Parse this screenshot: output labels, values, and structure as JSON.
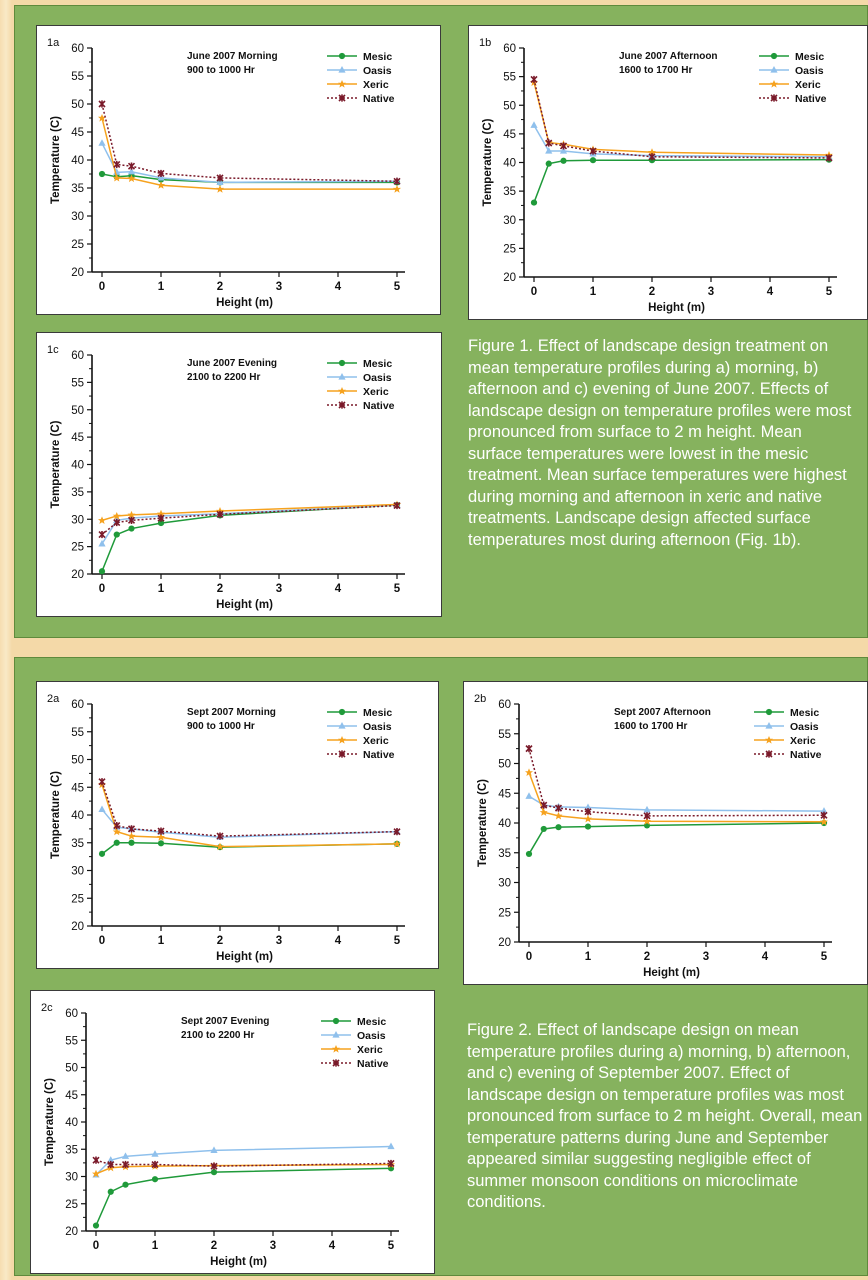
{
  "colors": {
    "panel": "#86b25e",
    "Mesic": "#1f9a3a",
    "Oasis": "#8fc0ec",
    "Xeric": "#f6a21e",
    "Native": "#7a1a2a"
  },
  "axis_text": {
    "ylabel": "Temperature (C)",
    "xlabel": "Height (m)",
    "yticks": [
      "60",
      "55",
      "50",
      "45",
      "40",
      "35",
      "30",
      "25",
      "20"
    ],
    "xticks": [
      "0",
      "1",
      "2",
      "3",
      "4",
      "5"
    ]
  },
  "legend": [
    "Mesic",
    "Oasis",
    "Xeric",
    "Native"
  ],
  "captions": {
    "fig1": "Figure 1. Effect of landscape design treatment on mean temperature profiles during a) morning, b) afternoon and c) evening of June 2007. Effects of landscape design on temperature profiles were most pronounced from surface to 2 m height. Mean surface temperatures were lowest in the mesic treatment. Mean surface temperatures were highest during morning and afternoon in xeric and native treatments. Landscape design affected surface temperatures most during afternoon (Fig. 1b).",
    "fig2": "Figure 2. Effect of landscape design on mean temperature profiles during a) morning, b) afternoon, and c) evening of September 2007. Effect of landscape design on temperature profiles was most pronounced from surface to 2 m height. Overall, mean temperature patterns during June and September appeared similar suggesting negligible effect of summer monsoon conditions on microclimate conditions."
  },
  "chart_data": [
    {
      "id": "1a",
      "type": "line",
      "title": "June 2007 Morning",
      "subtitle": "900 to 1000 Hr",
      "xlabel": "Height (m)",
      "ylabel": "Temperature (C)",
      "xlim": [
        0,
        5
      ],
      "ylim": [
        20,
        60
      ],
      "legend_position": "top-right",
      "x": [
        0,
        0.25,
        0.5,
        1,
        2,
        5
      ],
      "series": [
        {
          "name": "Mesic",
          "values": [
            37.5,
            37.0,
            37.2,
            36.5,
            36.0,
            36.0
          ]
        },
        {
          "name": "Oasis",
          "values": [
            43.0,
            37.8,
            37.9,
            36.8,
            36.0,
            36.2
          ]
        },
        {
          "name": "Xeric",
          "values": [
            47.5,
            36.8,
            36.7,
            35.5,
            34.8,
            34.8
          ]
        },
        {
          "name": "Native",
          "values": [
            50.0,
            39.2,
            38.9,
            37.6,
            36.8,
            36.2
          ]
        }
      ]
    },
    {
      "id": "1b",
      "type": "line",
      "title": "June 2007 Afternoon",
      "subtitle": "1600 to 1700 Hr",
      "xlabel": "Height (m)",
      "ylabel": "Temperature (C)",
      "xlim": [
        0,
        5
      ],
      "ylim": [
        20,
        60
      ],
      "legend_position": "top-right",
      "x": [
        0,
        0.25,
        0.5,
        1,
        2,
        5
      ],
      "series": [
        {
          "name": "Mesic",
          "values": [
            33.0,
            39.8,
            40.3,
            40.4,
            40.4,
            40.5
          ]
        },
        {
          "name": "Oasis",
          "values": [
            46.5,
            42.0,
            42.0,
            41.5,
            41.2,
            41.0
          ]
        },
        {
          "name": "Xeric",
          "values": [
            54.0,
            43.5,
            43.2,
            42.3,
            41.8,
            41.3
          ]
        },
        {
          "name": "Native",
          "values": [
            54.5,
            43.4,
            42.9,
            42.0,
            41.0,
            40.8
          ]
        }
      ]
    },
    {
      "id": "1c",
      "type": "line",
      "title": "June 2007 Evening",
      "subtitle": "2100 to 2200 Hr",
      "xlabel": "Height (m)",
      "ylabel": "Temperature (C)",
      "xlim": [
        0,
        5
      ],
      "ylim": [
        20,
        60
      ],
      "legend_position": "top-right",
      "x": [
        0,
        0.25,
        0.5,
        1,
        2,
        5
      ],
      "series": [
        {
          "name": "Mesic",
          "values": [
            20.5,
            27.2,
            28.3,
            29.3,
            30.7,
            32.6
          ]
        },
        {
          "name": "Oasis",
          "values": [
            25.5,
            29.8,
            30.2,
            30.6,
            31.0,
            32.6
          ]
        },
        {
          "name": "Xeric",
          "values": [
            29.8,
            30.6,
            30.8,
            31.0,
            31.5,
            32.7
          ]
        },
        {
          "name": "Native",
          "values": [
            27.2,
            29.4,
            29.8,
            30.2,
            30.9,
            32.5
          ]
        }
      ]
    },
    {
      "id": "2a",
      "type": "line",
      "title": "Sept 2007 Morning",
      "subtitle": "900 to 1000 Hr",
      "xlabel": "Height (m)",
      "ylabel": "Temperature (C)",
      "xlim": [
        0,
        5
      ],
      "ylim": [
        20,
        60
      ],
      "legend_position": "top-right",
      "x": [
        0,
        0.25,
        0.5,
        1,
        2,
        5
      ],
      "series": [
        {
          "name": "Mesic",
          "values": [
            33.0,
            35.0,
            35.0,
            34.9,
            34.2,
            34.8
          ]
        },
        {
          "name": "Oasis",
          "values": [
            41.0,
            37.8,
            37.5,
            36.9,
            36.0,
            37.0
          ]
        },
        {
          "name": "Xeric",
          "values": [
            45.5,
            37.0,
            36.2,
            36.0,
            34.3,
            34.8
          ]
        },
        {
          "name": "Native",
          "values": [
            46.0,
            38.1,
            37.5,
            37.1,
            36.2,
            37.0
          ]
        }
      ]
    },
    {
      "id": "2b",
      "type": "line",
      "title": "Sept 2007 Afternoon",
      "subtitle": "1600 to 1700 Hr",
      "xlabel": "Height (m)",
      "ylabel": "Temperature (C)",
      "xlim": [
        0,
        5
      ],
      "ylim": [
        20,
        60
      ],
      "legend_position": "top-right",
      "x": [
        0,
        0.25,
        0.5,
        1,
        2,
        5
      ],
      "series": [
        {
          "name": "Mesic",
          "values": [
            34.8,
            39.0,
            39.3,
            39.4,
            39.6,
            40.0
          ]
        },
        {
          "name": "Oasis",
          "values": [
            44.5,
            43.0,
            42.7,
            42.6,
            42.2,
            42.0
          ]
        },
        {
          "name": "Xeric",
          "values": [
            48.5,
            41.8,
            41.2,
            40.7,
            40.3,
            40.2
          ]
        },
        {
          "name": "Native",
          "values": [
            52.5,
            43.0,
            42.5,
            41.9,
            41.2,
            41.3
          ]
        }
      ]
    },
    {
      "id": "2c",
      "type": "line",
      "title": "Sept 2007 Evening",
      "subtitle": "2100 to 2200 Hr",
      "xlabel": "Height (m)",
      "ylabel": "Temperature (C)",
      "xlim": [
        0,
        5
      ],
      "ylim": [
        20,
        60
      ],
      "legend_position": "top-right",
      "x": [
        0,
        0.25,
        0.5,
        1,
        2,
        5
      ],
      "series": [
        {
          "name": "Mesic",
          "values": [
            21.0,
            27.2,
            28.5,
            29.5,
            30.8,
            31.5
          ]
        },
        {
          "name": "Oasis",
          "values": [
            30.3,
            33.0,
            33.7,
            34.1,
            34.8,
            35.5
          ]
        },
        {
          "name": "Xeric",
          "values": [
            30.5,
            31.6,
            31.8,
            31.9,
            32.0,
            32.2
          ]
        },
        {
          "name": "Native",
          "values": [
            33.0,
            32.2,
            32.2,
            32.2,
            31.9,
            32.4
          ]
        }
      ]
    }
  ]
}
